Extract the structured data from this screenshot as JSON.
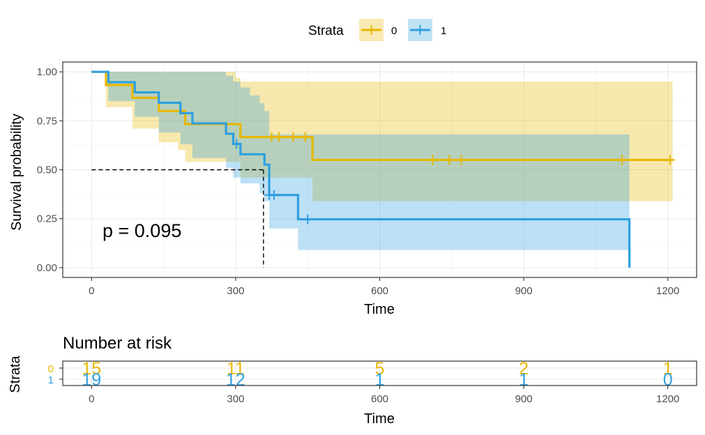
{
  "legend": {
    "title": "Strata",
    "placement": "top",
    "entries": [
      {
        "label": "0",
        "color": "#E7B800"
      },
      {
        "label": "1",
        "color": "#2E9FDF"
      }
    ]
  },
  "chart_data": [
    {
      "type": "line",
      "subtype": "kaplan-meier",
      "xlabel": "Time",
      "ylabel": "Survival probability",
      "xlim": [
        -60,
        1260
      ],
      "ylim": [
        -0.05,
        1.05
      ],
      "xticks": [
        0,
        300,
        600,
        900,
        1200
      ],
      "xtick_labels": [
        "0",
        "300",
        "600",
        "900",
        "1200"
      ],
      "yticks": [
        0,
        0.25,
        0.5,
        0.75,
        1.0
      ],
      "ytick_labels": [
        "0.00",
        "0.25",
        "0.50",
        "0.75",
        "1.00"
      ],
      "grid": true,
      "annotation": "p = 0.095",
      "annotation_pos": {
        "x": 25,
        "y": 0.19
      },
      "median_line": {
        "y": 0.5,
        "x": 358
      },
      "series": [
        {
          "name": "0",
          "color": "#E7B800",
          "steps": [
            [
              0,
              1.0
            ],
            [
              30,
              0.933
            ],
            [
              85,
              0.867
            ],
            [
              140,
              0.8
            ],
            [
              195,
              0.733
            ],
            [
              310,
              0.667
            ],
            [
              460,
              0.55
            ],
            [
              1210,
              0.55
            ]
          ],
          "ci": [
            [
              0,
              1.0,
              1.0
            ],
            [
              30,
              0.82,
              1.0
            ],
            [
              85,
              0.71,
              1.0
            ],
            [
              140,
              0.64,
              1.0
            ],
            [
              180,
              0.6,
              1.0
            ],
            [
              195,
              0.54,
              1.0
            ],
            [
              300,
              0.54,
              0.97
            ],
            [
              310,
              0.46,
              0.95
            ],
            [
              460,
              0.34,
              0.95
            ],
            [
              1210,
              0.34,
              0.92
            ]
          ],
          "censor_times": [
            375,
            390,
            420,
            445,
            710,
            745,
            770,
            1105,
            1205
          ]
        },
        {
          "name": "1",
          "color": "#2E9FDF",
          "steps": [
            [
              0,
              1.0
            ],
            [
              35,
              0.947
            ],
            [
              90,
              0.895
            ],
            [
              140,
              0.842
            ],
            [
              185,
              0.789
            ],
            [
              210,
              0.737
            ],
            [
              280,
              0.684
            ],
            [
              295,
              0.632
            ],
            [
              310,
              0.579
            ],
            [
              360,
              0.526
            ],
            [
              370,
              0.371
            ],
            [
              430,
              0.247
            ],
            [
              1120,
              0.247
            ],
            [
              1120,
              0.0
            ]
          ],
          "ci": [
            [
              0,
              1.0,
              1.0
            ],
            [
              35,
              0.85,
              1.0
            ],
            [
              90,
              0.77,
              1.0
            ],
            [
              140,
              0.69,
              1.0
            ],
            [
              185,
              0.63,
              1.0
            ],
            [
              210,
              0.56,
              1.0
            ],
            [
              280,
              0.51,
              0.98
            ],
            [
              295,
              0.46,
              0.95
            ],
            [
              310,
              0.43,
              0.92
            ],
            [
              330,
              0.43,
              0.88
            ],
            [
              350,
              0.38,
              0.84
            ],
            [
              360,
              0.34,
              0.8
            ],
            [
              370,
              0.2,
              0.68
            ],
            [
              430,
              0.09,
              0.68
            ],
            [
              1120,
              0.09,
              0.68
            ]
          ],
          "censor_times": [
            302,
            370,
            380,
            450
          ]
        }
      ]
    },
    {
      "type": "table",
      "title": "Number at risk",
      "xlabel": "Time",
      "ylabel": "Strata",
      "xticks": [
        0,
        300,
        600,
        900,
        1200
      ],
      "xtick_labels": [
        "0",
        "300",
        "600",
        "900",
        "1200"
      ],
      "rows": [
        {
          "strata": "0",
          "color": "#E7B800",
          "values": [
            "15",
            "11",
            "5",
            "2",
            "1"
          ]
        },
        {
          "strata": "1",
          "color": "#2E9FDF",
          "values": [
            "19",
            "12",
            "1",
            "1",
            "0"
          ]
        }
      ]
    }
  ]
}
